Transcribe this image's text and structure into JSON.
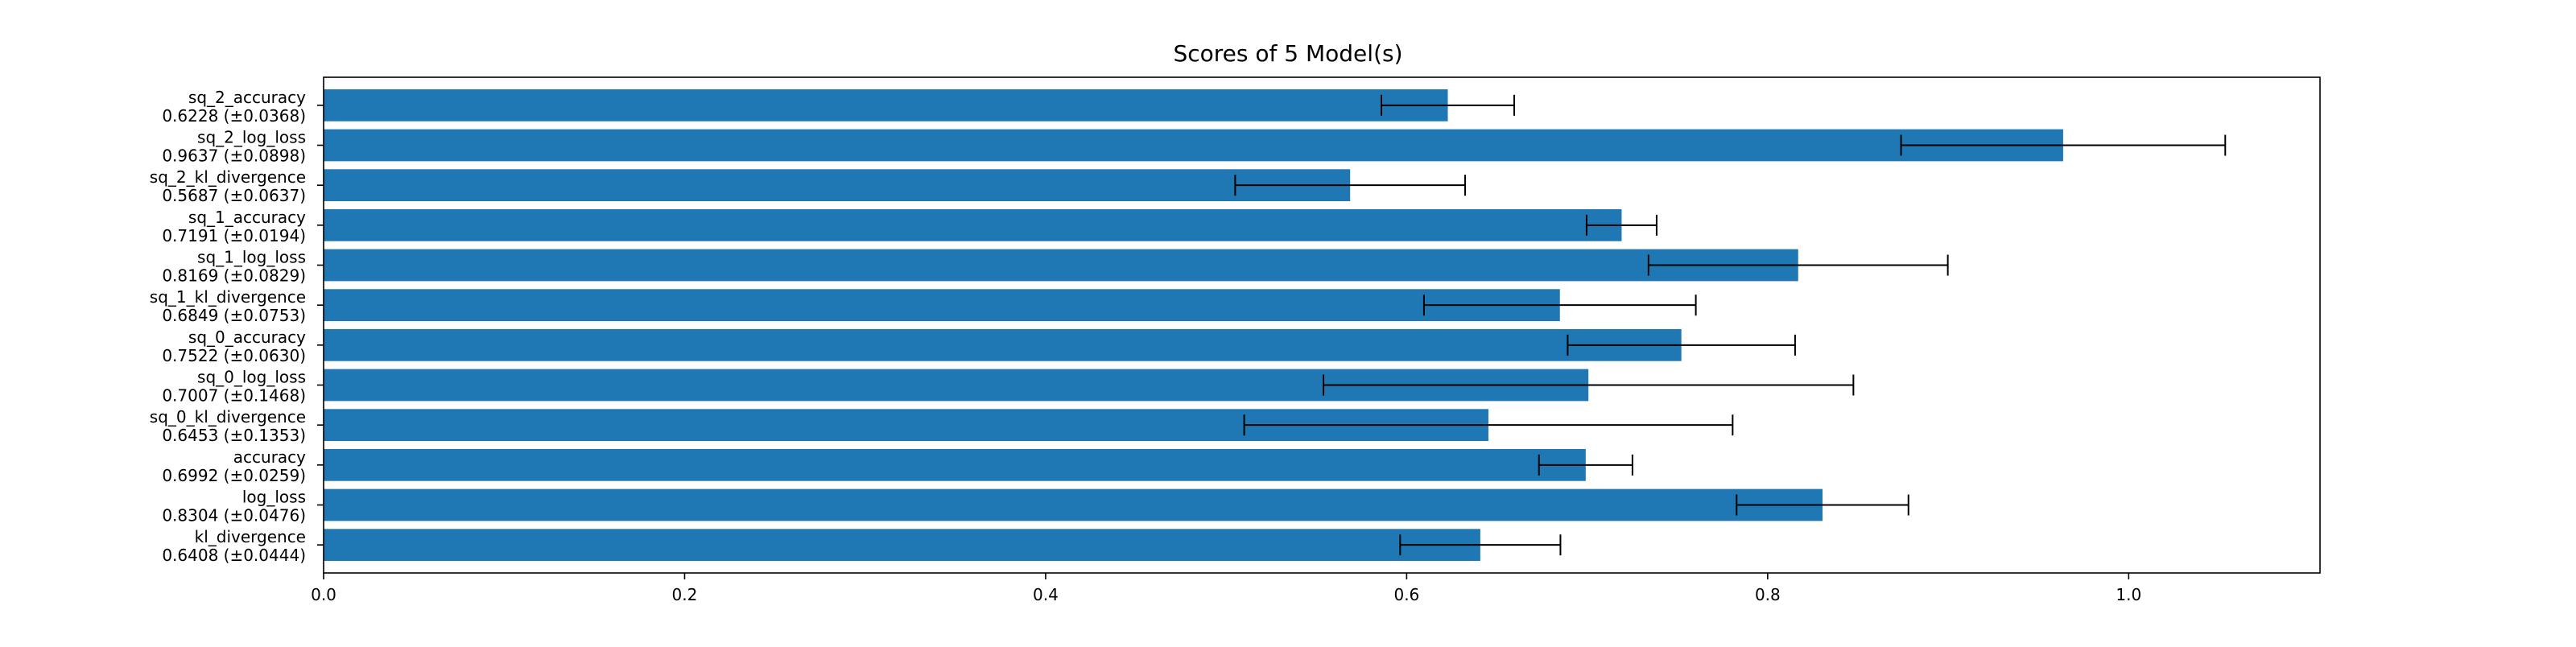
{
  "chart_data": {
    "type": "bar",
    "orientation": "horizontal",
    "title": "Scores of 5 Model(s)",
    "xlabel": "",
    "ylabel": "",
    "xlim": [
      0,
      1.106
    ],
    "xticks": [
      "0.0",
      "0.2",
      "0.4",
      "0.6",
      "0.8",
      "1.0"
    ],
    "grid": false,
    "bar_color": "#1f77b4",
    "errorbar_color": "#000000",
    "categories": [
      "sq_2_accuracy",
      "sq_2_log_loss",
      "sq_2_kl_divergence",
      "sq_1_accuracy",
      "sq_1_log_loss",
      "sq_1_kl_divergence",
      "sq_0_accuracy",
      "sq_0_log_loss",
      "sq_0_kl_divergence",
      "accuracy",
      "log_loss",
      "kl_divergence"
    ],
    "value_labels": [
      "0.6228 (±0.0368)",
      "0.9637 (±0.0898)",
      "0.5687 (±0.0637)",
      "0.7191 (±0.0194)",
      "0.8169 (±0.0829)",
      "0.6849 (±0.0753)",
      "0.7522 (±0.0630)",
      "0.7007 (±0.1468)",
      "0.6453 (±0.1353)",
      "0.6992 (±0.0259)",
      "0.8304 (±0.0476)",
      "0.6408 (±0.0444)"
    ],
    "values": [
      0.6228,
      0.9637,
      0.5687,
      0.7191,
      0.8169,
      0.6849,
      0.7522,
      0.7007,
      0.6453,
      0.6992,
      0.8304,
      0.6408
    ],
    "errors": [
      0.0368,
      0.0898,
      0.0637,
      0.0194,
      0.0829,
      0.0753,
      0.063,
      0.1468,
      0.1353,
      0.0259,
      0.0476,
      0.0444
    ]
  }
}
